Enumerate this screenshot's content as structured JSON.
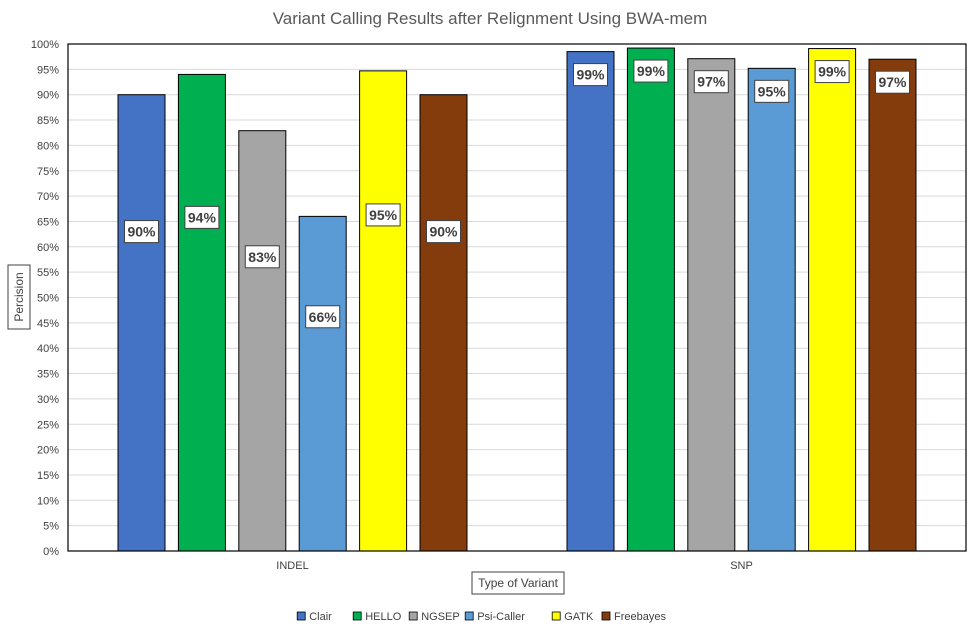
{
  "chart_data": {
    "type": "bar",
    "title": "Variant Calling Results after Relignment Using BWA-mem",
    "xlabel": "Type of Variant",
    "ylabel": "Percision",
    "categories": [
      "INDEL",
      "SNP"
    ],
    "ylim": [
      0,
      100
    ],
    "yticks": [
      0,
      5,
      10,
      15,
      20,
      25,
      30,
      35,
      40,
      45,
      50,
      55,
      60,
      65,
      70,
      75,
      80,
      85,
      90,
      95,
      100
    ],
    "ytick_labels": [
      "0%",
      "5%",
      "10%",
      "15%",
      "20%",
      "25%",
      "30%",
      "35%",
      "40%",
      "45%",
      "50%",
      "55%",
      "60%",
      "65%",
      "70%",
      "75%",
      "80%",
      "85%",
      "90%",
      "95%",
      "100%"
    ],
    "grid": true,
    "legend_position": "bottom",
    "series": [
      {
        "name": "Clair",
        "color": "#4472C4",
        "values": [
          90,
          98.5
        ],
        "labels": [
          "90%",
          "99%"
        ]
      },
      {
        "name": "HELLO",
        "color": "#00B050",
        "values": [
          94,
          99.2
        ],
        "labels": [
          "94%",
          "99%"
        ]
      },
      {
        "name": "NGSEP",
        "color": "#A5A5A5",
        "values": [
          82.9,
          97.1
        ],
        "labels": [
          "83%",
          "97%"
        ]
      },
      {
        "name": "Psi-Caller",
        "color": "#5B9BD5",
        "values": [
          66,
          95.2
        ],
        "labels": [
          "66%",
          "95%"
        ]
      },
      {
        "name": "GATK",
        "color": "#FFFF00",
        "values": [
          94.7,
          99.1
        ],
        "labels": [
          "95%",
          "99%"
        ]
      },
      {
        "name": "Freebayes",
        "color": "#843C0C",
        "values": [
          90,
          97
        ],
        "labels": [
          "90%",
          "97%"
        ]
      }
    ]
  }
}
